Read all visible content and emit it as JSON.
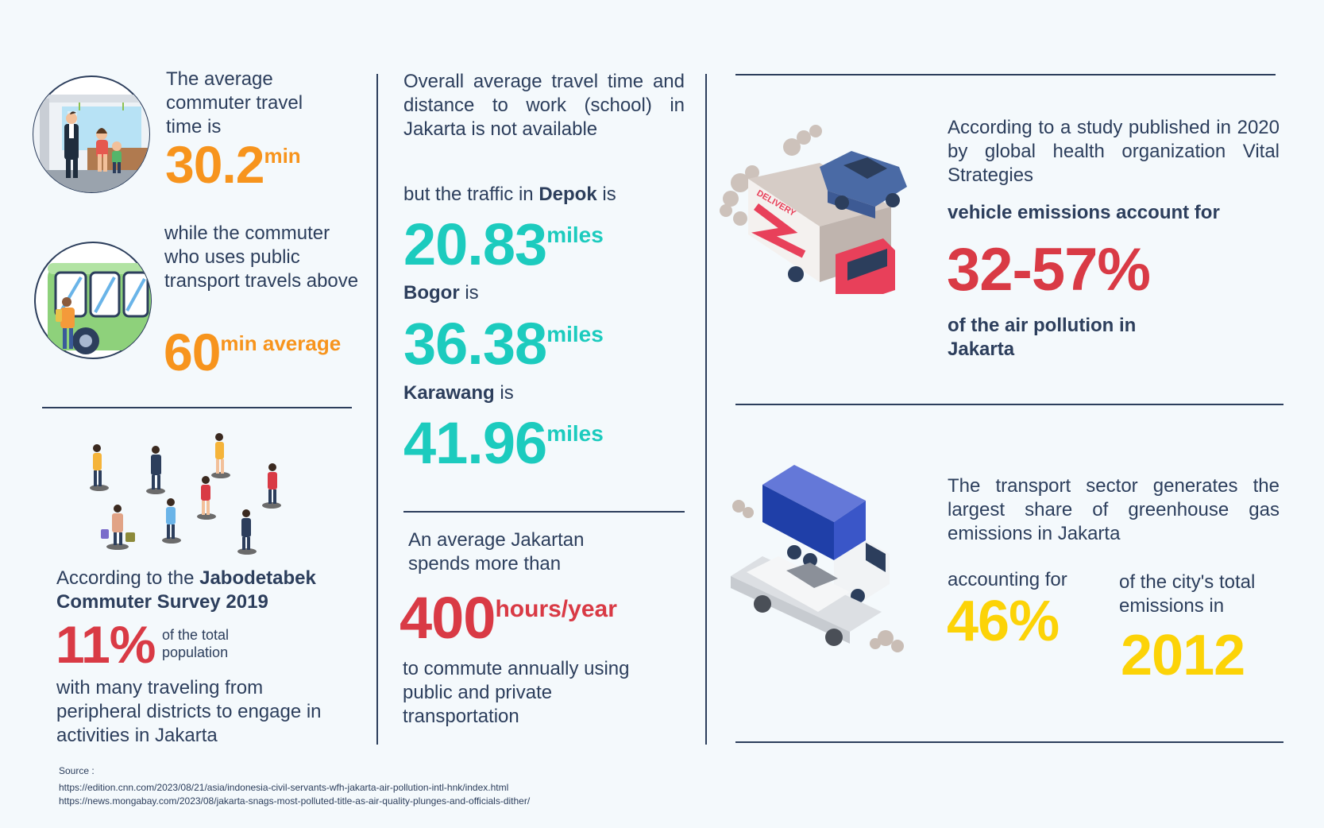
{
  "colors": {
    "navy": "#2c3e5c",
    "orange": "#f7941d",
    "teal": "#1ccbbe",
    "red": "#d93a45",
    "yellow": "#fcd307",
    "background": "#f4f9fc"
  },
  "icons": [
    "train-commuters-icon",
    "bus-passenger-icon",
    "crowd-people-icon",
    "delivery-truck-car-icon",
    "truck-car-emissions-icon"
  ],
  "col1": {
    "avg_intro": "The average commuter travel time is",
    "avg_value": "30.2",
    "avg_unit": "min",
    "public_intro": "while the commuter who uses public transport travels above",
    "public_value": "60",
    "public_unit": "min average",
    "survey_intro": "According to the ",
    "survey_name": "Jabodetabek Commuter Survey 2019",
    "survey_value": "11%",
    "survey_unit": "of the total population",
    "survey_outro": "with many traveling from peripheral districts to engage in activities in Jakarta"
  },
  "col2": {
    "overall_text": "Overall average travel time and distance to work (school) in Jakarta is not available",
    "traffic_intro_prefix": "but the traffic in ",
    "depok_name": "Depok",
    "is_word": " is",
    "depok_value": "20.83",
    "bogor_name": "Bogor",
    "bogor_value": "36.38",
    "karawang_name": "Karawang",
    "karawang_value": "41.96",
    "miles_unit": "miles",
    "spend_intro": "An average Jakartan spends more than",
    "spend_value": "400",
    "spend_unit": "hours/year",
    "spend_outro": "to commute annually using public and private transportation"
  },
  "col3": {
    "study_text": "According to a study published in 2020 by global health organization Vital Strategies",
    "vehicle_text": "vehicle emissions account for",
    "emission_value": "32-57%",
    "air_text": "of the air pollution in Jakarta",
    "transport_text": "The transport sector generates the largest share of greenhouse gas emissions in Jakarta",
    "accounting_text": "accounting for",
    "share_value": "46%",
    "city_text": "of the city's total emissions in",
    "year_value": "2012",
    "truck_label": "DELIVERY"
  },
  "source": {
    "label": "Source :",
    "url1": "https://edition.cnn.com/2023/08/21/asia/indonesia-civil-servants-wfh-jakarta-air-pollution-intl-hnk/index.html",
    "url2": "https://news.mongabay.com/2023/08/jakarta-snags-most-polluted-title-as-air-quality-plunges-and-officials-dither/"
  }
}
